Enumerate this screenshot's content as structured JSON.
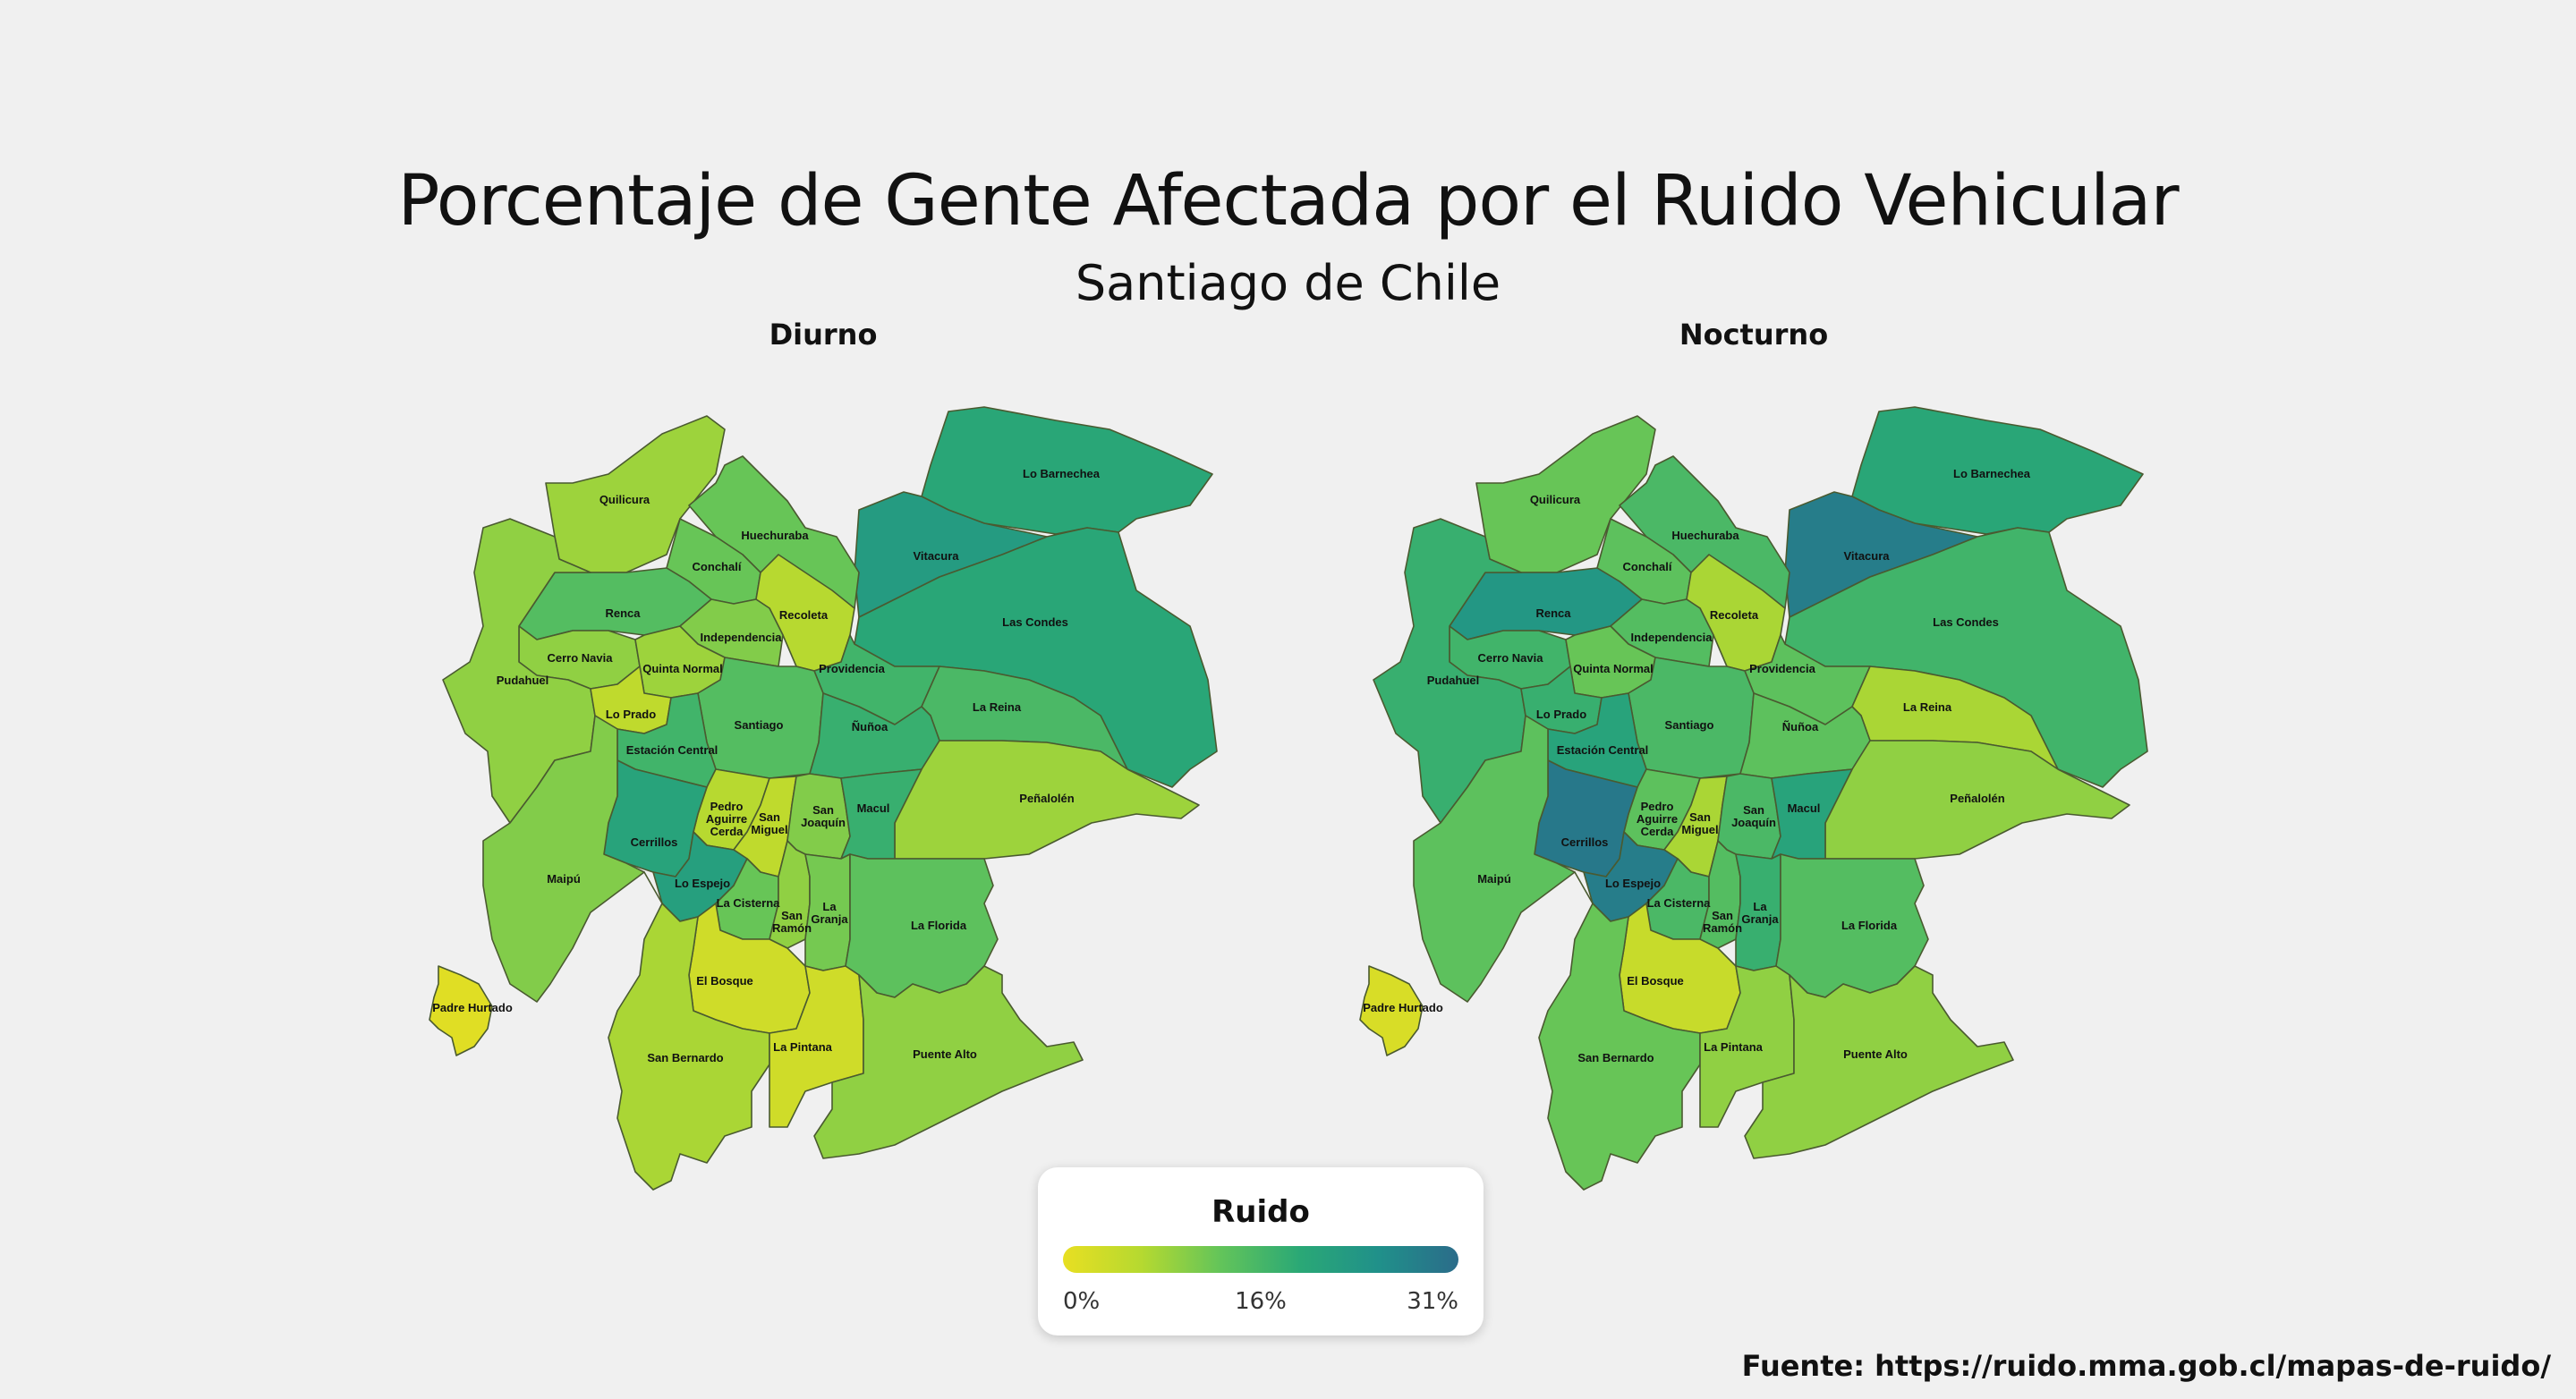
{
  "title": "Porcentaje de Gente Afectada por el Ruido Vehicular",
  "subtitle": "Santiago de Chile",
  "legend": {
    "title": "Ruido",
    "min_label": "0%",
    "mid_label": "16%",
    "max_label": "31%",
    "min": 0,
    "max": 31,
    "colors": [
      "#e8df22",
      "#b5d930",
      "#62c45a",
      "#2aa876",
      "#20908a",
      "#2b6c8a"
    ]
  },
  "source": "Fuente: https://ruido.mma.gob.cl/mapas-de-ruido/",
  "maps": [
    {
      "id": "diurno",
      "title": "Diurno",
      "values": {
        "Lo Barnechea": 19,
        "Vitacura": 22,
        "Las Condes": 19,
        "Quilicura": 8,
        "Huechuraba": 12,
        "Conchalí": 12,
        "Recoleta": 6,
        "Renca": 14,
        "Independencia": 10,
        "Providencia": 16,
        "Cerro Navia": 9,
        "Quinta Normal": 8,
        "Pudahuel": 9,
        "Lo Prado": 5,
        "Santiago": 14,
        "La Reina": 15,
        "Ñuñoa": 17,
        "Estación Central": 16,
        "Peñalolén": 8,
        "Pedro Aguirre Cerda": 6,
        "San Miguel": 5,
        "San Joaquín": 10,
        "Macul": 17,
        "Cerrillos": 20,
        "Maipú": 10,
        "Lo Espejo": 21,
        "La Cisterna": 12,
        "San Ramón": 9,
        "La Granja": 11,
        "La Florida": 13,
        "El Bosque": 3,
        "Padre Hurtado": 1,
        "San Bernardo": 7,
        "La Pintana": 3,
        "Puente Alto": 9
      }
    },
    {
      "id": "nocturno",
      "title": "Nocturno",
      "values": {
        "Lo Barnechea": 19,
        "Vitacura": 28,
        "Las Condes": 16,
        "Quilicura": 12,
        "Huechuraba": 15,
        "Conchalí": 13,
        "Recoleta": 7,
        "Renca": 23,
        "Independencia": 14,
        "Providencia": 13,
        "Cerro Navia": 16,
        "Quinta Normal": 12,
        "Pudahuel": 17,
        "Lo Prado": 17,
        "Santiago": 15,
        "La Reina": 7,
        "Ñuñoa": 13,
        "Estación Central": 20,
        "Peñalolén": 9,
        "Pedro Aguirre Cerda": 13,
        "San Miguel": 7,
        "San Joaquín": 15,
        "Macul": 20,
        "Cerrillos": 29,
        "Maipú": 13,
        "Lo Espejo": 28,
        "La Cisterna": 15,
        "San Ramón": 14,
        "La Granja": 17,
        "La Florida": 14,
        "El Bosque": 4,
        "Padre Hurtado": 2,
        "San Bernardo": 12,
        "La Pintana": 9,
        "Puente Alto": 9
      }
    }
  ],
  "labels": {
    "Lo Barnechea": "Lo Barnechea",
    "Vitacura": "Vitacura",
    "Las Condes": "Las Condes",
    "Quilicura": "Quilicura",
    "Huechuraba": "Huechuraba",
    "Conchalí": "Conchalí",
    "Recoleta": "Recoleta",
    "Renca": "Renca",
    "Independencia": "Independencia",
    "Providencia": "Providencia",
    "Cerro Navia": "Cerro Navia",
    "Quinta Normal": "Quinta Normal",
    "Pudahuel": "Pudahuel",
    "Lo Prado": "Lo Prado",
    "Santiago": "Santiago",
    "La Reina": "La Reina",
    "Ñuñoa": "Ñuñoa",
    "Estación Central": "Estación Central",
    "Peñalolén": "Peñalolén",
    "Pedro Aguirre Cerda": "Pedro Aguirre Cerda",
    "San Miguel": "San Miguel",
    "San Joaquín": "San Joaquín",
    "Macul": "Macul",
    "Cerrillos": "Cerrillos",
    "Maipú": "Maipú",
    "Lo Espejo": "Lo Espejo",
    "La Cisterna": "La Cisterna",
    "San Ramón": "San Ramón",
    "La Granja": "La Granja",
    "La Florida": "La Florida",
    "El Bosque": "El Bosque",
    "Padre Hurtado": "Padre Hurtado",
    "San Bernardo": "San Bernardo",
    "La Pintana": "La Pintana",
    "Puente Alto": "Puente Alto"
  }
}
